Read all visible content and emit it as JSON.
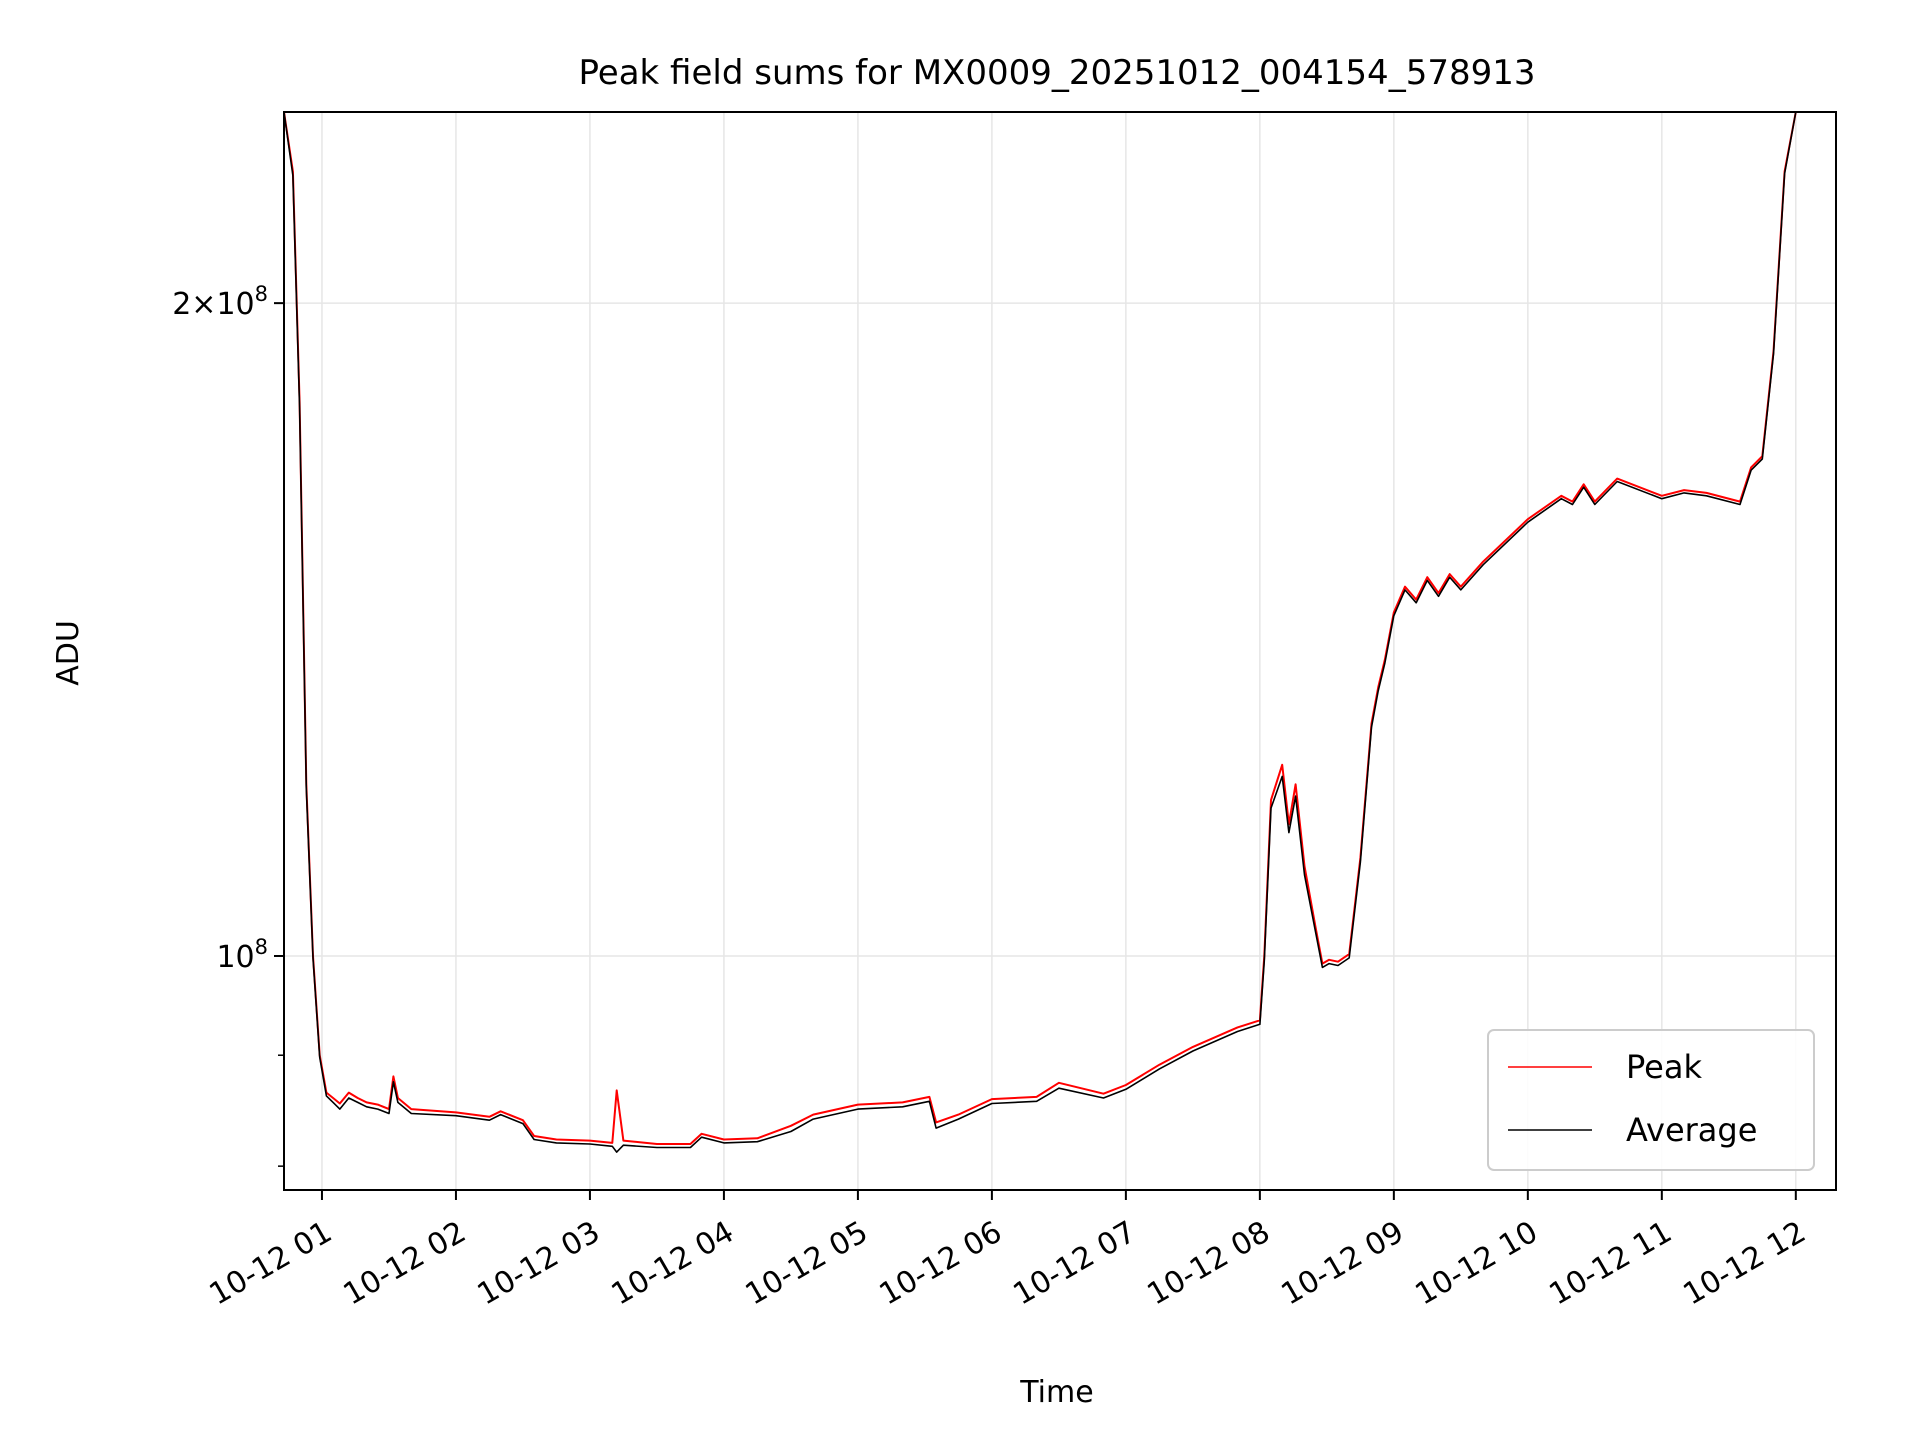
{
  "chart_data": {
    "type": "line",
    "title": "Peak field sums for MX0009_20251012_004154_578913",
    "xlabel": "Time",
    "ylabel": "ADU",
    "yscale": "log",
    "ylim": [
      78000000,
      245000000
    ],
    "x_range": [
      "2025-10-12 00:43",
      "2025-10-12 12:00"
    ],
    "x_ticks": [
      {
        "time": "2025-10-12 01:00",
        "label": "10-12 01"
      },
      {
        "time": "2025-10-12 02:00",
        "label": "10-12 02"
      },
      {
        "time": "2025-10-12 03:00",
        "label": "10-12 03"
      },
      {
        "time": "2025-10-12 04:00",
        "label": "10-12 04"
      },
      {
        "time": "2025-10-12 05:00",
        "label": "10-12 05"
      },
      {
        "time": "2025-10-12 06:00",
        "label": "10-12 06"
      },
      {
        "time": "2025-10-12 07:00",
        "label": "10-12 07"
      },
      {
        "time": "2025-10-12 08:00",
        "label": "10-12 08"
      },
      {
        "time": "2025-10-12 09:00",
        "label": "10-12 09"
      },
      {
        "time": "2025-10-12 10:00",
        "label": "10-12 10"
      },
      {
        "time": "2025-10-12 11:00",
        "label": "10-12 11"
      },
      {
        "time": "2025-10-12 12:00",
        "label": "10-12 12"
      }
    ],
    "y_ticks_major": [
      {
        "value": 100000000,
        "mantissa": "",
        "base": "10",
        "exponent": "8"
      },
      {
        "value": 200000000,
        "mantissa": "2×",
        "base": "10",
        "exponent": "8"
      }
    ],
    "y_ticks_minor": [
      80000000,
      90000000
    ],
    "grid": true,
    "legend_position": "lower-right",
    "series": [
      {
        "name": "Peak",
        "color": "#ff0000",
        "x": [
          "2025-10-12 00:43",
          "2025-10-12 00:47",
          "2025-10-12 00:50",
          "2025-10-12 00:53",
          "2025-10-12 00:56",
          "2025-10-12 00:59",
          "2025-10-12 01:02",
          "2025-10-12 01:05",
          "2025-10-12 01:08",
          "2025-10-12 01:12",
          "2025-10-12 01:16",
          "2025-10-12 01:20",
          "2025-10-12 01:25",
          "2025-10-12 01:30",
          "2025-10-12 01:32",
          "2025-10-12 01:34",
          "2025-10-12 01:40",
          "2025-10-12 02:00",
          "2025-10-12 02:15",
          "2025-10-12 02:20",
          "2025-10-12 02:30",
          "2025-10-12 02:35",
          "2025-10-12 02:45",
          "2025-10-12 03:00",
          "2025-10-12 03:10",
          "2025-10-12 03:12",
          "2025-10-12 03:15",
          "2025-10-12 03:30",
          "2025-10-12 03:45",
          "2025-10-12 03:50",
          "2025-10-12 04:00",
          "2025-10-12 04:15",
          "2025-10-12 04:30",
          "2025-10-12 04:40",
          "2025-10-12 05:00",
          "2025-10-12 05:20",
          "2025-10-12 05:32",
          "2025-10-12 05:35",
          "2025-10-12 05:45",
          "2025-10-12 06:00",
          "2025-10-12 06:20",
          "2025-10-12 06:30",
          "2025-10-12 06:50",
          "2025-10-12 07:00",
          "2025-10-12 07:15",
          "2025-10-12 07:30",
          "2025-10-12 07:50",
          "2025-10-12 08:00",
          "2025-10-12 08:02",
          "2025-10-12 08:05",
          "2025-10-12 08:10",
          "2025-10-12 08:13",
          "2025-10-12 08:16",
          "2025-10-12 08:20",
          "2025-10-12 08:25",
          "2025-10-12 08:28",
          "2025-10-12 08:31",
          "2025-10-12 08:35",
          "2025-10-12 08:40",
          "2025-10-12 08:45",
          "2025-10-12 08:50",
          "2025-10-12 08:53",
          "2025-10-12 08:56",
          "2025-10-12 09:00",
          "2025-10-12 09:05",
          "2025-10-12 09:10",
          "2025-10-12 09:15",
          "2025-10-12 09:20",
          "2025-10-12 09:25",
          "2025-10-12 09:30",
          "2025-10-12 09:40",
          "2025-10-12 10:00",
          "2025-10-12 10:15",
          "2025-10-12 10:20",
          "2025-10-12 10:25",
          "2025-10-12 10:30",
          "2025-10-12 10:40",
          "2025-10-12 11:00",
          "2025-10-12 11:10",
          "2025-10-12 11:20",
          "2025-10-12 11:35",
          "2025-10-12 11:40",
          "2025-10-12 11:45",
          "2025-10-12 11:50",
          "2025-10-12 11:55",
          "2025-10-12 12:00"
        ],
        "values": [
          245000000,
          230000000,
          180000000,
          120000000,
          100000000,
          90000000,
          86500000,
          86000000,
          85500000,
          86500000,
          86000000,
          85600000,
          85400000,
          85000000,
          88000000,
          86000000,
          85000000,
          84700000,
          84300000,
          84800000,
          84000000,
          82600000,
          82300000,
          82200000,
          82000000,
          86700000,
          82200000,
          81900000,
          81900000,
          82800000,
          82300000,
          82400000,
          83500000,
          84500000,
          85400000,
          85600000,
          86100000,
          83800000,
          84500000,
          85900000,
          86100000,
          87400000,
          86400000,
          87200000,
          89100000,
          90800000,
          92700000,
          93400000,
          100000000,
          118000000,
          122500000,
          115000000,
          120000000,
          110000000,
          103000000,
          99200000,
          99600000,
          99400000,
          100200000,
          111000000,
          128000000,
          133000000,
          137000000,
          144000000,
          148000000,
          146000000,
          149500000,
          147000000,
          150000000,
          148000000,
          152000000,
          159000000,
          163000000,
          162000000,
          165000000,
          162000000,
          166000000,
          163000000,
          164000000,
          163500000,
          162000000,
          168000000,
          170000000,
          190000000,
          230000000,
          245000000
        ]
      },
      {
        "name": "Average",
        "color": "#000000",
        "x": [
          "2025-10-12 00:43",
          "2025-10-12 00:47",
          "2025-10-12 00:50",
          "2025-10-12 00:53",
          "2025-10-12 00:56",
          "2025-10-12 00:59",
          "2025-10-12 01:02",
          "2025-10-12 01:05",
          "2025-10-12 01:08",
          "2025-10-12 01:12",
          "2025-10-12 01:16",
          "2025-10-12 01:20",
          "2025-10-12 01:25",
          "2025-10-12 01:30",
          "2025-10-12 01:32",
          "2025-10-12 01:34",
          "2025-10-12 01:40",
          "2025-10-12 02:00",
          "2025-10-12 02:15",
          "2025-10-12 02:20",
          "2025-10-12 02:30",
          "2025-10-12 02:35",
          "2025-10-12 02:45",
          "2025-10-12 03:00",
          "2025-10-12 03:10",
          "2025-10-12 03:12",
          "2025-10-12 03:15",
          "2025-10-12 03:30",
          "2025-10-12 03:45",
          "2025-10-12 03:50",
          "2025-10-12 04:00",
          "2025-10-12 04:15",
          "2025-10-12 04:30",
          "2025-10-12 04:40",
          "2025-10-12 05:00",
          "2025-10-12 05:20",
          "2025-10-12 05:32",
          "2025-10-12 05:35",
          "2025-10-12 05:45",
          "2025-10-12 06:00",
          "2025-10-12 06:20",
          "2025-10-12 06:30",
          "2025-10-12 06:50",
          "2025-10-12 07:00",
          "2025-10-12 07:15",
          "2025-10-12 07:30",
          "2025-10-12 07:50",
          "2025-10-12 08:00",
          "2025-10-12 08:02",
          "2025-10-12 08:05",
          "2025-10-12 08:10",
          "2025-10-12 08:13",
          "2025-10-12 08:16",
          "2025-10-12 08:20",
          "2025-10-12 08:25",
          "2025-10-12 08:28",
          "2025-10-12 08:31",
          "2025-10-12 08:35",
          "2025-10-12 08:40",
          "2025-10-12 08:45",
          "2025-10-12 08:50",
          "2025-10-12 08:53",
          "2025-10-12 08:56",
          "2025-10-12 09:00",
          "2025-10-12 09:05",
          "2025-10-12 09:10",
          "2025-10-12 09:15",
          "2025-10-12 09:20",
          "2025-10-12 09:25",
          "2025-10-12 09:30",
          "2025-10-12 09:40",
          "2025-10-12 10:00",
          "2025-10-12 10:15",
          "2025-10-12 10:20",
          "2025-10-12 10:25",
          "2025-10-12 10:30",
          "2025-10-12 10:40",
          "2025-10-12 11:00",
          "2025-10-12 11:10",
          "2025-10-12 11:20",
          "2025-10-12 11:35",
          "2025-10-12 11:40",
          "2025-10-12 11:45",
          "2025-10-12 11:50",
          "2025-10-12 11:55",
          "2025-10-12 12:00"
        ],
        "values": [
          245000000,
          229000000,
          179000000,
          119500000,
          99800000,
          89800000,
          86200000,
          85600000,
          85000000,
          86000000,
          85600000,
          85200000,
          85000000,
          84600000,
          87500000,
          85600000,
          84600000,
          84400000,
          84000000,
          84500000,
          83700000,
          82300000,
          82000000,
          81900000,
          81700000,
          81200000,
          81800000,
          81600000,
          81600000,
          82500000,
          82000000,
          82100000,
          83000000,
          84100000,
          85000000,
          85200000,
          85700000,
          83300000,
          84100000,
          85500000,
          85700000,
          86900000,
          86000000,
          86800000,
          88700000,
          90400000,
          92300000,
          93000000,
          99500000,
          117000000,
          121000000,
          114000000,
          118500000,
          109000000,
          102500000,
          98800000,
          99200000,
          99000000,
          99800000,
          110500000,
          127500000,
          132500000,
          136500000,
          143500000,
          147500000,
          145500000,
          149000000,
          146500000,
          149500000,
          147500000,
          151500000,
          158500000,
          162500000,
          161500000,
          164500000,
          161500000,
          165500000,
          162500000,
          163500000,
          163000000,
          161500000,
          167500000,
          169500000,
          189500000,
          229500000,
          245000000
        ]
      }
    ]
  }
}
